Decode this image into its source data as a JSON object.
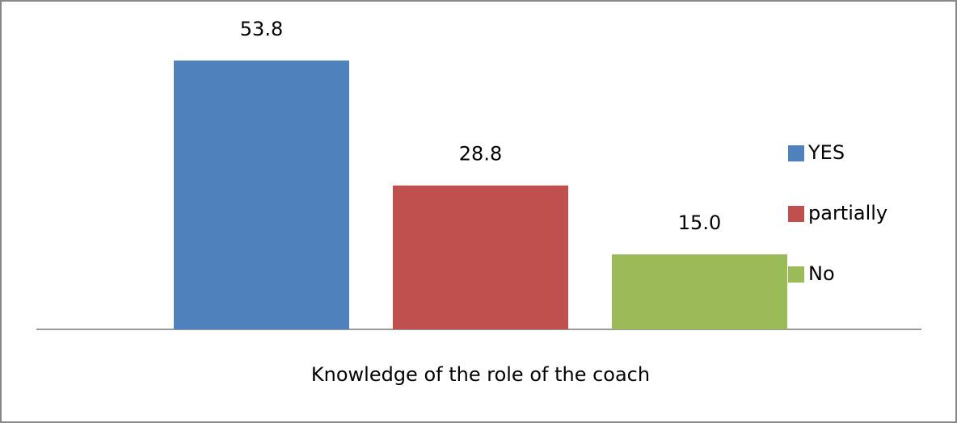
{
  "chart_data": {
    "type": "bar",
    "categories": [
      "Knowledge of the role of the coach"
    ],
    "series": [
      {
        "name": "YES",
        "color": "#4f81bd",
        "values": [
          53.8
        ]
      },
      {
        "name": "partially",
        "color": "#c0504d",
        "values": [
          28.8
        ]
      },
      {
        "name": "No",
        "color": "#9bbb59",
        "values": [
          15
        ],
        "value_labels": [
          "15.0"
        ]
      }
    ],
    "legend": "right"
  }
}
